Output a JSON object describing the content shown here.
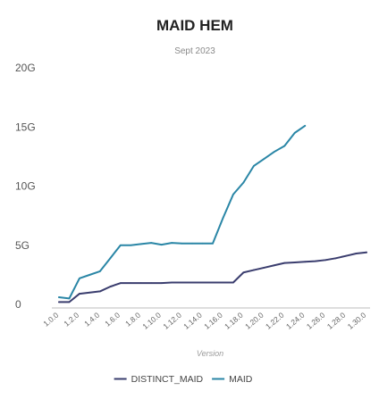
{
  "chart_data": {
    "type": "line",
    "title": "MAID HEM",
    "subtitle": "Sept 2023",
    "xlabel": "Version",
    "ylabel": "",
    "ylim": [
      0,
      20
    ],
    "y_ticks": [
      {
        "value": 0,
        "label": "0"
      },
      {
        "value": 5,
        "label": "5G"
      },
      {
        "value": 10,
        "label": "10G"
      },
      {
        "value": 15,
        "label": "15G"
      },
      {
        "value": 20,
        "label": "20G"
      }
    ],
    "grid": false,
    "legend_position": "bottom",
    "x": [
      "1.0.0",
      "1.1.0",
      "1.2.0",
      "1.3.0",
      "1.4.0",
      "1.5.0",
      "1.6.0",
      "1.7.0",
      "1.8.0",
      "1.9.0",
      "1.10.0",
      "1.11.0",
      "1.12.0",
      "1.13.0",
      "1.14.0",
      "1.15.0",
      "1.16.0",
      "1.17.0",
      "1.18.0",
      "1.19.0",
      "1.20.0",
      "1.21.0",
      "1.22.0",
      "1.23.0",
      "1.24.0",
      "1.25.0",
      "1.26.0",
      "1.27.0",
      "1.28.0",
      "1.29.0",
      "1.30.0"
    ],
    "x_tick_labels": [
      "1.0.0",
      "1.2.0",
      "1.4.0",
      "1.6.0",
      "1.8.0",
      "1.10.0",
      "1.12.0",
      "1.14.0",
      "1.16.0",
      "1.18.0",
      "1.20.0",
      "1.22.0",
      "1.24.0",
      "1.26.0",
      "1.28.0",
      "1.30.0"
    ],
    "series": [
      {
        "name": "DISTINCT_MAID",
        "color": "#3a3d6e",
        "values": [
          0.2,
          0.2,
          0.9,
          1.0,
          1.1,
          1.5,
          1.8,
          1.8,
          1.8,
          1.8,
          1.8,
          1.85,
          1.85,
          1.85,
          1.85,
          1.85,
          1.85,
          1.85,
          2.7,
          2.9,
          3.1,
          3.3,
          3.5,
          3.55,
          3.6,
          3.65,
          3.75,
          3.9,
          4.1,
          4.3,
          4.4
        ]
      },
      {
        "name": "MAID",
        "color": "#2a86a6",
        "values": [
          0.6,
          0.5,
          2.2,
          2.5,
          2.8,
          3.9,
          5.0,
          5.0,
          5.1,
          5.2,
          5.05,
          5.2,
          5.15,
          5.15,
          5.15,
          5.15,
          7.3,
          9.3,
          10.3,
          11.7,
          12.3,
          12.9,
          13.4,
          14.5,
          15.1,
          null,
          null,
          null,
          null,
          null,
          null
        ]
      }
    ]
  }
}
